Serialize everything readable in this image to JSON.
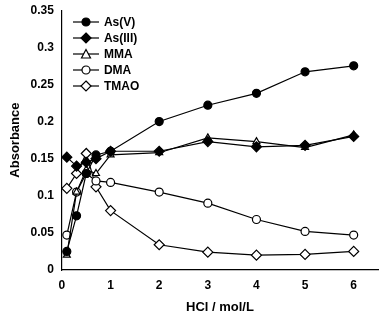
{
  "chart_data": {
    "type": "line",
    "x_label": "HCl / mol/L",
    "y_label": "Absorbance",
    "x": [
      0.1,
      0.3,
      0.5,
      0.7,
      1,
      2,
      3,
      4,
      5,
      6
    ],
    "series": [
      {
        "name": "As(V)",
        "color": "#000000",
        "marker": "filled_circle",
        "values": [
          0.025,
          0.073,
          0.13,
          0.155,
          0.16,
          0.2,
          0.222,
          0.238,
          0.267,
          0.275
        ]
      },
      {
        "name": "As(III)",
        "color": "#000000",
        "marker": "filled_diamond",
        "values": [
          0.152,
          0.14,
          0.145,
          0.15,
          0.16,
          0.16,
          0.173,
          0.166,
          0.168,
          0.18
        ]
      },
      {
        "name": "MMA",
        "color": "#000000",
        "marker": "open_triangle",
        "values": [
          0.02,
          0.105,
          0.135,
          0.13,
          0.155,
          0.158,
          0.178,
          0.173,
          0.165,
          0.182
        ]
      },
      {
        "name": "DMA",
        "color": "#000000",
        "marker": "open_circle",
        "values": [
          0.047,
          0.105,
          0.13,
          0.12,
          0.118,
          0.105,
          0.09,
          0.068,
          0.052,
          0.047
        ]
      },
      {
        "name": "TMAO",
        "color": "#000000",
        "marker": "open_diamond",
        "values": [
          0.11,
          0.13,
          0.157,
          0.112,
          0.08,
          0.034,
          0.024,
          0.02,
          0.021,
          0.025
        ]
      }
    ],
    "xlim": [
      0,
      6.5
    ],
    "xticks": [
      0,
      1,
      2,
      3,
      4,
      5,
      6
    ],
    "ylim": [
      0,
      0.35
    ],
    "yticks": [
      0,
      0.05,
      0.1,
      0.15,
      0.2,
      0.25,
      0.3,
      0.35
    ],
    "grid": false,
    "legend": "upper left"
  }
}
